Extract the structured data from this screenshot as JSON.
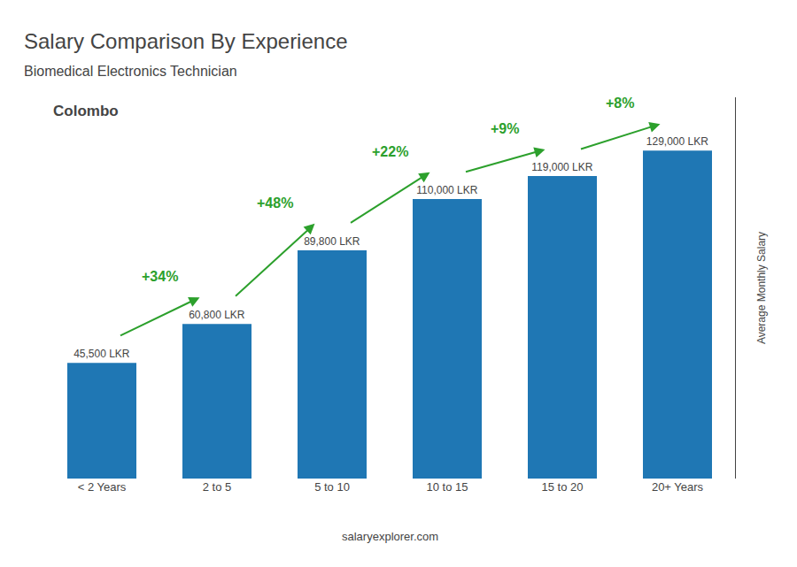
{
  "chart_data": {
    "type": "bar",
    "title": "Salary Comparison By Experience",
    "subtitle": "Biomedical Electronics Technician",
    "ylabel": "Average Monthly Salary",
    "categories": [
      "< 2 Years",
      "2 to 5",
      "5 to 10",
      "10 to 15",
      "15 to 20",
      "20+ Years"
    ],
    "values": [
      45500,
      60800,
      89800,
      110000,
      119000,
      129000
    ],
    "value_labels": [
      "45,500 LKR",
      "60,800 LKR",
      "89,800 LKR",
      "110,000 LKR",
      "119,000 LKR",
      "129,000 LKR"
    ],
    "data_labels": true,
    "change_labels": [
      "+34%",
      "+48%",
      "+22%",
      "+9%",
      "+8%"
    ],
    "annotations": [
      "Colombo",
      "salaryexplorer.com"
    ],
    "ylim": [
      0,
      150000
    ],
    "grid": false,
    "tick_labels": "x"
  }
}
